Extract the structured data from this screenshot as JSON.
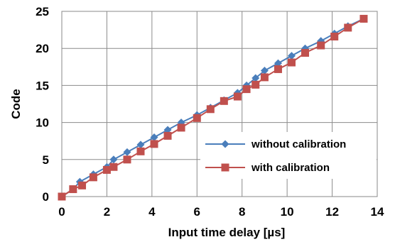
{
  "chart_data": {
    "type": "line",
    "xlabel": "Input time delay [µs]",
    "ylabel": "Code",
    "xlim": [
      0,
      14
    ],
    "ylim": [
      0,
      25
    ],
    "xticks": [
      0,
      2,
      4,
      6,
      8,
      10,
      12,
      14
    ],
    "yticks": [
      0,
      5,
      10,
      15,
      20,
      25
    ],
    "grid": true,
    "legend_position": "lower-right",
    "series": [
      {
        "name": "without calibration",
        "color": "#4a7ebb",
        "marker": "diamond",
        "x": [
          0,
          0.5,
          0.8,
          1.4,
          2.0,
          2.3,
          2.9,
          3.5,
          4.1,
          4.7,
          5.3,
          6.0,
          6.6,
          7.2,
          7.8,
          8.2,
          8.6,
          9.0,
          9.6,
          10.2,
          10.8,
          11.5,
          12.1,
          12.7,
          13.4
        ],
        "y": [
          0,
          1,
          2,
          3,
          4,
          5,
          6,
          7,
          8,
          9,
          10,
          11,
          12,
          13,
          14,
          15,
          16,
          17,
          18,
          19,
          20,
          21,
          22,
          23,
          24
        ]
      },
      {
        "name": "with calibration",
        "color": "#c0504d",
        "marker": "square",
        "x": [
          0,
          0.5,
          0.9,
          1.4,
          2.0,
          2.3,
          2.9,
          3.5,
          4.1,
          4.7,
          5.3,
          6.0,
          6.6,
          7.2,
          7.8,
          8.2,
          8.6,
          9.0,
          9.6,
          10.2,
          10.8,
          11.5,
          12.1,
          12.7,
          13.4
        ],
        "y": [
          0,
          1,
          1.5,
          2.6,
          3.6,
          4.0,
          5.0,
          6.1,
          7.1,
          8.2,
          9.3,
          10.6,
          11.8,
          12.9,
          13.5,
          14.5,
          15.1,
          16.1,
          17.2,
          18.1,
          19.4,
          20.4,
          21.6,
          22.8,
          24.0
        ]
      }
    ]
  }
}
